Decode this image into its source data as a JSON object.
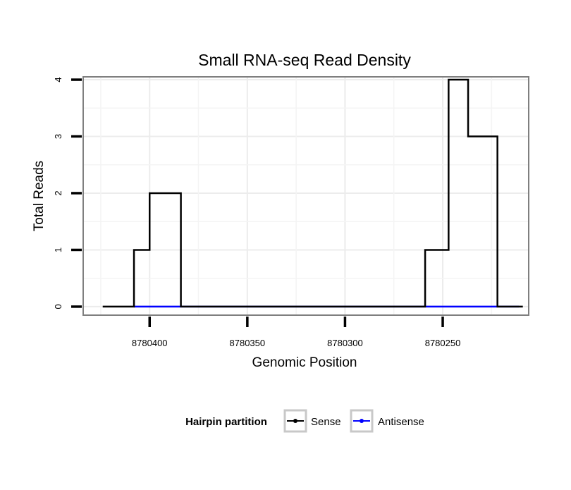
{
  "chart_data": {
    "type": "line",
    "step": true,
    "title": "Small RNA-seq Read Density",
    "xlabel": "Genomic Position",
    "ylabel": "Total Reads",
    "x_reversed": true,
    "xlim": [
      8780434,
      8780206
    ],
    "ylim": [
      -0.15,
      4.05
    ],
    "xticks": [
      8780400,
      8780350,
      8780300,
      8780250
    ],
    "xtick_labels": [
      "8780400",
      "8780350",
      "8780300",
      "8780250"
    ],
    "yticks": [
      0,
      1,
      2,
      3,
      4
    ],
    "ytick_labels": [
      "0",
      "1",
      "2",
      "3",
      "4"
    ],
    "series": [
      {
        "name": "Sense",
        "color": "#000000",
        "x": [
          8780424,
          8780408,
          8780400,
          8780384,
          8780259,
          8780247,
          8780237,
          8780222,
          8780209
        ],
        "y": [
          0,
          1,
          2,
          0,
          1,
          4,
          3,
          0,
          0
        ]
      },
      {
        "name": "Antisense",
        "color": "#0000ff",
        "x": [
          8780408,
          8780384,
          8780259,
          8780211
        ],
        "y": [
          0,
          0,
          0,
          0
        ]
      }
    ],
    "legend": {
      "title": "Hairpin partition",
      "position": "bottom",
      "entries": [
        "Sense",
        "Antisense"
      ]
    }
  }
}
